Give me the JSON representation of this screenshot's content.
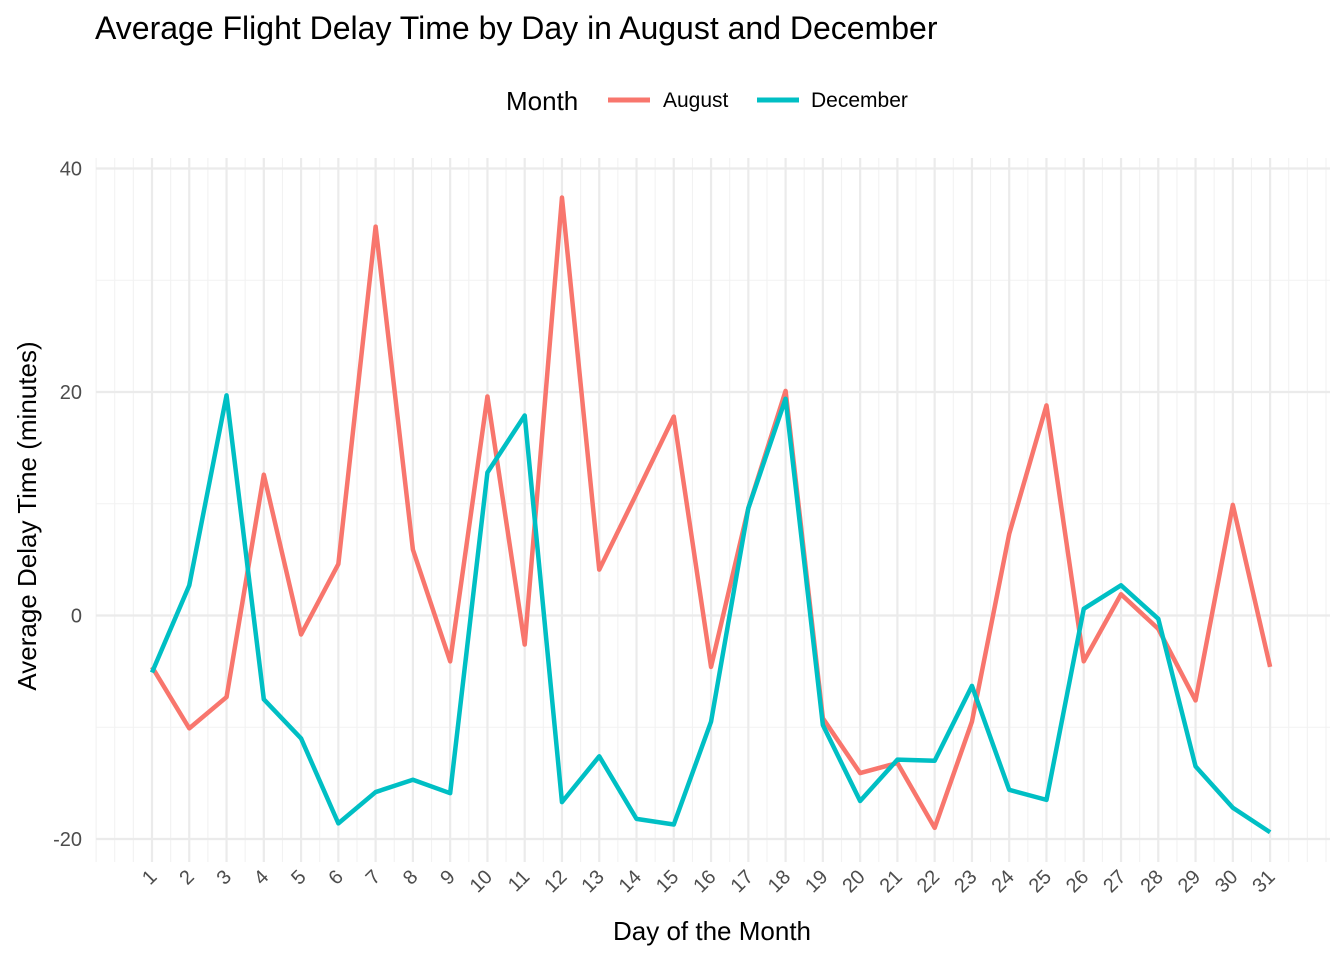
{
  "chart_data": {
    "type": "line",
    "title": "Average Flight Delay Time by Day in August and December",
    "xlabel": "Day of the Month",
    "ylabel": "Average Delay Time (minutes)",
    "legend": {
      "title": "Month",
      "position": "top"
    },
    "categories": [
      "1",
      "2",
      "3",
      "4",
      "5",
      "6",
      "7",
      "8",
      "9",
      "10",
      "11",
      "12",
      "13",
      "14",
      "15",
      "16",
      "17",
      "18",
      "19",
      "20",
      "21",
      "22",
      "23",
      "24",
      "25",
      "26",
      "27",
      "28",
      "29",
      "30",
      "31"
    ],
    "y_ticks": [
      -20,
      0,
      20,
      40
    ],
    "ylim": [
      -22.5,
      41.5
    ],
    "grid": true,
    "x_tick_rotation": -45,
    "series": [
      {
        "name": "August",
        "color": "#F8766D",
        "values": [
          -4.6,
          -10.1,
          -7.3,
          12.6,
          -1.7,
          4.6,
          34.8,
          5.9,
          -4.1,
          19.6,
          -2.6,
          37.4,
          4.1,
          10.9,
          17.8,
          -4.6,
          9.6,
          20.1,
          -9.2,
          -14.1,
          -13.2,
          -19.0,
          -9.5,
          7.3,
          18.8,
          -4.1,
          1.9,
          -1.2,
          -7.6,
          9.9,
          -4.6
        ]
      },
      {
        "name": "December",
        "color": "#00BFC4",
        "values": [
          -5.1,
          2.7,
          19.7,
          -7.5,
          -11.0,
          -18.6,
          -15.8,
          -14.7,
          -15.9,
          12.8,
          17.9,
          -16.7,
          -12.6,
          -18.2,
          -18.7,
          -9.5,
          9.6,
          19.4,
          -9.8,
          -16.6,
          -12.9,
          -13.0,
          -6.3,
          -15.6,
          -16.5,
          0.6,
          2.7,
          -0.3,
          -13.5,
          -17.2,
          -19.4
        ]
      }
    ]
  }
}
